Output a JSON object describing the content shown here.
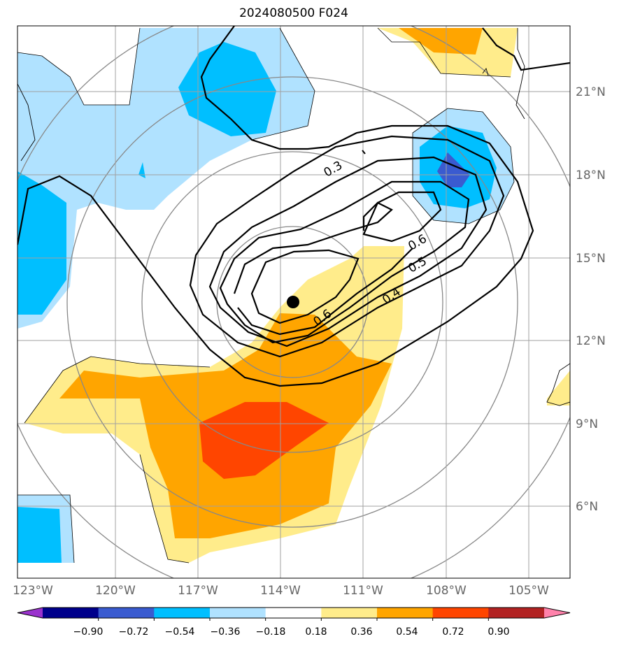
{
  "title": "2024080500 F024",
  "map": {
    "lon_labels": [
      "123°W",
      "120°W",
      "117°W",
      "114°W",
      "111°W",
      "108°W",
      "105°W"
    ],
    "lat_labels": [
      "6°N",
      "9°N",
      "12°N",
      "15°N",
      "18°N",
      "21°N"
    ],
    "center_marker": {
      "lon": "113.6°W",
      "lat": "13.5°N"
    }
  },
  "contours": {
    "labels": [
      "0.3",
      "0.6",
      "0.5",
      "0.4",
      "0.6"
    ]
  },
  "colorbar": {
    "ticks": [
      "−0.90",
      "−0.72",
      "−0.54",
      "−0.36",
      "−0.18",
      "0.18",
      "0.36",
      "0.54",
      "0.72",
      "0.90"
    ],
    "colors": [
      "#9a32cd",
      "#00008b",
      "#3a5bd0",
      "#00bfff",
      "#b0e2ff",
      "#ffffff",
      "#ffec8b",
      "#ffa500",
      "#ff4500",
      "#b22222",
      "#ff82ab"
    ]
  }
}
